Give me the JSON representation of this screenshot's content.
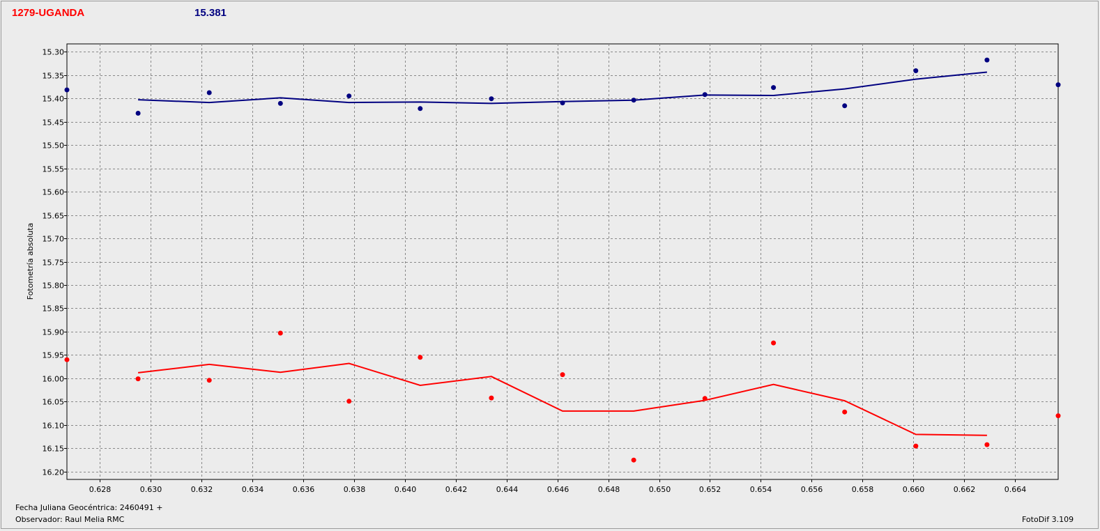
{
  "header": {
    "object_name": "1279-UGANDA",
    "magnitude": "15.381"
  },
  "footer": {
    "julian_date": "Fecha Juliana Geocéntrica: 2460491 +",
    "observer": "Observador: Raul Melia RMC",
    "software": "FotoDif 3.109"
  },
  "colors": {
    "blue": "#000080",
    "red": "#ff0000",
    "grid": "#888888",
    "plot_bg": "#ececec"
  },
  "chart_data": {
    "type": "scatter",
    "xlabel": "",
    "ylabel": "Fotometría absoluta",
    "xlim": [
      0.6267,
      0.6657
    ],
    "ylim": [
      15.2835,
      16.2165
    ],
    "y_inverted": true,
    "grid": true,
    "x_ticks": [
      "0.628",
      "0.630",
      "0.632",
      "0.634",
      "0.636",
      "0.638",
      "0.640",
      "0.642",
      "0.644",
      "0.646",
      "0.648",
      "0.650",
      "0.652",
      "0.654",
      "0.656",
      "0.658",
      "0.660",
      "0.662",
      "0.664"
    ],
    "y_ticks": [
      "15.30",
      "15.35",
      "15.40",
      "15.45",
      "15.50",
      "15.55",
      "15.60",
      "15.65",
      "15.70",
      "15.75",
      "15.80",
      "15.85",
      "15.90",
      "15.95",
      "16.00",
      "16.05",
      "16.10",
      "16.15",
      "16.20"
    ],
    "series": [
      {
        "color": "#000080",
        "points": [
          [
            0.6267,
            15.382
          ],
          [
            0.6295,
            15.432
          ],
          [
            0.6323,
            15.388
          ],
          [
            0.6351,
            15.411
          ],
          [
            0.6378,
            15.395
          ],
          [
            0.6406,
            15.422
          ],
          [
            0.6434,
            15.401
          ],
          [
            0.6462,
            15.41
          ],
          [
            0.649,
            15.404
          ],
          [
            0.6518,
            15.392
          ],
          [
            0.6545,
            15.377
          ],
          [
            0.6573,
            15.416
          ],
          [
            0.6601,
            15.341
          ],
          [
            0.6629,
            15.318
          ],
          [
            0.6657,
            15.371
          ]
        ],
        "trend": [
          [
            0.6295,
            15.403
          ],
          [
            0.6323,
            15.409
          ],
          [
            0.6351,
            15.399
          ],
          [
            0.6378,
            15.409
          ],
          [
            0.6406,
            15.408
          ],
          [
            0.6434,
            15.411
          ],
          [
            0.6462,
            15.407
          ],
          [
            0.649,
            15.404
          ],
          [
            0.6518,
            15.393
          ],
          [
            0.6545,
            15.394
          ],
          [
            0.6573,
            15.38
          ],
          [
            0.6601,
            15.359
          ],
          [
            0.6629,
            15.344
          ]
        ]
      },
      {
        "color": "#ff0000",
        "points": [
          [
            0.6267,
            15.96
          ],
          [
            0.6295,
            16.001
          ],
          [
            0.6323,
            16.004
          ],
          [
            0.6351,
            15.903
          ],
          [
            0.6378,
            16.049
          ],
          [
            0.6406,
            15.955
          ],
          [
            0.6434,
            16.042
          ],
          [
            0.6462,
            15.992
          ],
          [
            0.649,
            16.175
          ],
          [
            0.6518,
            16.043
          ],
          [
            0.6545,
            15.924
          ],
          [
            0.6573,
            16.072
          ],
          [
            0.6601,
            16.145
          ],
          [
            0.6629,
            16.142
          ],
          [
            0.6657,
            16.08
          ]
        ],
        "trend": [
          [
            0.6295,
            15.988
          ],
          [
            0.6323,
            15.97
          ],
          [
            0.6351,
            15.987
          ],
          [
            0.6378,
            15.968
          ],
          [
            0.6406,
            16.015
          ],
          [
            0.6434,
            15.996
          ],
          [
            0.6462,
            16.07
          ],
          [
            0.649,
            16.07
          ],
          [
            0.6518,
            16.047
          ],
          [
            0.6545,
            16.013
          ],
          [
            0.6573,
            16.048
          ],
          [
            0.6601,
            16.12
          ],
          [
            0.6629,
            16.122
          ]
        ]
      }
    ]
  }
}
